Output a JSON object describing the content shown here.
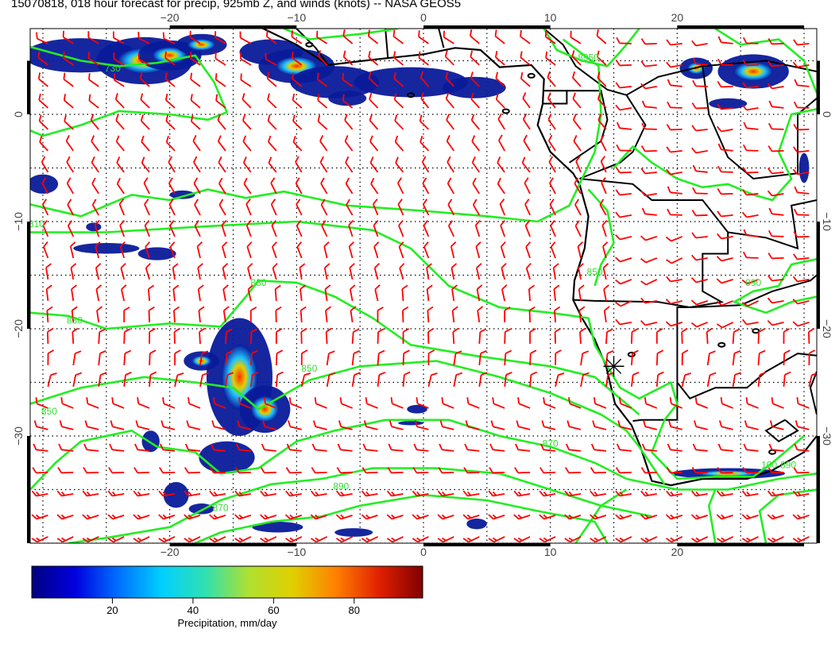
{
  "title": "15070818, 018 hour forecast for precip, 925mb Z, and winds (knots) -- NASA GEOS5",
  "axes": {
    "lon_ticks": [
      {
        "value": -20,
        "label": "−20"
      },
      {
        "value": -10,
        "label": "−10"
      },
      {
        "value": 0,
        "label": "0"
      },
      {
        "value": 10,
        "label": "10"
      },
      {
        "value": 20,
        "label": "20"
      }
    ],
    "lat_ticks": [
      {
        "value": 0,
        "label": "0"
      },
      {
        "value": -10,
        "label": "−10"
      },
      {
        "value": -20,
        "label": "−20"
      },
      {
        "value": -30,
        "label": "−30"
      }
    ],
    "lon_range": [
      -31,
      31
    ],
    "lat_range": [
      -40,
      8
    ]
  },
  "colors": {
    "wind_barbs": "#ff0000",
    "height_contours": "#22ee22",
    "coastline": "#000000"
  },
  "contour_labels": [
    {
      "text": "730",
      "lon": -24.5,
      "lat": 4.0
    },
    {
      "text": "810",
      "lon": -30.5,
      "lat": -10.5
    },
    {
      "text": "830",
      "lon": -13.0,
      "lat": -16.0
    },
    {
      "text": "830",
      "lon": -27.5,
      "lat": -19.5
    },
    {
      "text": "850",
      "lon": -9.0,
      "lat": -24.0
    },
    {
      "text": "850",
      "lon": -29.5,
      "lat": -28.0
    },
    {
      "text": "870",
      "lon": -16.0,
      "lat": -37.0
    },
    {
      "text": "890",
      "lon": -6.5,
      "lat": -35.0
    },
    {
      "text": "870",
      "lon": 10.0,
      "lat": -31.0
    },
    {
      "text": "850",
      "lon": 13.5,
      "lat": -15.0
    },
    {
      "text": "8950",
      "lon": 13.0,
      "lat": 5.0
    },
    {
      "text": "890",
      "lon": 26.0,
      "lat": -16.0
    },
    {
      "text": "100-890",
      "lon": 28.0,
      "lat": -33.0
    }
  ],
  "marker": {
    "symbol": "asterisk",
    "lon": 15.0,
    "lat": -23.5
  },
  "colorbar": {
    "label": "Precipitation, mm/day",
    "ticks": [
      {
        "value": 20,
        "label": "20"
      },
      {
        "value": 40,
        "label": "40"
      },
      {
        "value": 60,
        "label": "60"
      },
      {
        "value": 80,
        "label": "80"
      }
    ],
    "range": [
      0,
      97
    ],
    "stops": [
      "#000080",
      "#0000e0",
      "#0070ff",
      "#00d0ff",
      "#30e0b0",
      "#b0e030",
      "#e0d000",
      "#ff8000",
      "#e02000",
      "#800000"
    ]
  }
}
